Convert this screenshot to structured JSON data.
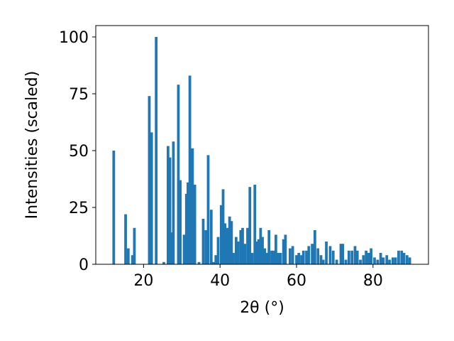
{
  "chart_data": {
    "type": "bar",
    "xlabel": "2θ (°)",
    "ylabel": "Intensities (scaled)",
    "xlim": [
      7.5,
      94.5
    ],
    "ylim": [
      0,
      105
    ],
    "xticks": [
      20,
      40,
      60,
      80
    ],
    "yticks": [
      0,
      25,
      50,
      75,
      100
    ],
    "bar_color": "#1f77b4",
    "bar_width": 0.7,
    "x": [
      12.2,
      15.3,
      16.0,
      17.1,
      17.6,
      21.5,
      22.1,
      23.3,
      25.3,
      26.4,
      26.9,
      27.4,
      27.8,
      29.1,
      29.6,
      30.6,
      31.2,
      31.6,
      32.1,
      32.8,
      33.4,
      34.5,
      35.6,
      36.3,
      36.9,
      37.7,
      38.3,
      38.9,
      39.5,
      40.3,
      40.8,
      41.3,
      41.9,
      42.5,
      43.0,
      43.5,
      44.2,
      44.7,
      45.4,
      45.9,
      46.5,
      47.2,
      47.8,
      48.4,
      49.1,
      49.5,
      50.1,
      50.6,
      51.1,
      51.7,
      52.3,
      52.8,
      53.5,
      54.0,
      54.6,
      55.2,
      55.8,
      56.6,
      57.1,
      58.3,
      59.0,
      60.0,
      60.6,
      61.3,
      61.8,
      62.6,
      63.2,
      64.1,
      64.8,
      65.6,
      66.4,
      67.0,
      67.8,
      68.8,
      69.6,
      70.5,
      71.6,
      72.1,
      72.9,
      73.7,
      74.5,
      75.3,
      75.9,
      76.7,
      77.5,
      78.2,
      78.9,
      79.5,
      80.4,
      81.2,
      82.0,
      82.7,
      83.6,
      84.3,
      85.2,
      85.9,
      86.7,
      87.5,
      88.1,
      88.9,
      89.6
    ],
    "values": [
      50,
      22,
      7,
      4,
      16,
      74,
      58,
      100,
      1,
      52,
      47,
      14,
      54,
      79,
      37,
      13,
      31,
      36,
      83,
      51,
      35,
      1,
      20,
      15,
      48,
      24,
      1,
      4,
      12,
      26,
      33,
      18,
      16,
      21,
      19,
      5,
      12,
      10,
      15,
      16,
      9,
      16,
      34,
      5,
      35,
      10,
      11,
      16,
      12,
      7,
      5,
      15,
      6,
      6,
      13,
      5,
      5,
      11,
      13,
      7,
      8,
      4,
      5,
      4,
      6,
      6,
      8,
      9,
      15,
      7,
      4,
      2,
      10,
      8,
      6,
      2,
      9,
      9,
      2,
      6,
      6,
      8,
      6,
      2,
      4,
      6,
      5,
      7,
      3,
      2,
      5,
      3,
      4,
      2,
      3,
      3,
      6,
      6,
      5,
      4,
      3
    ]
  }
}
